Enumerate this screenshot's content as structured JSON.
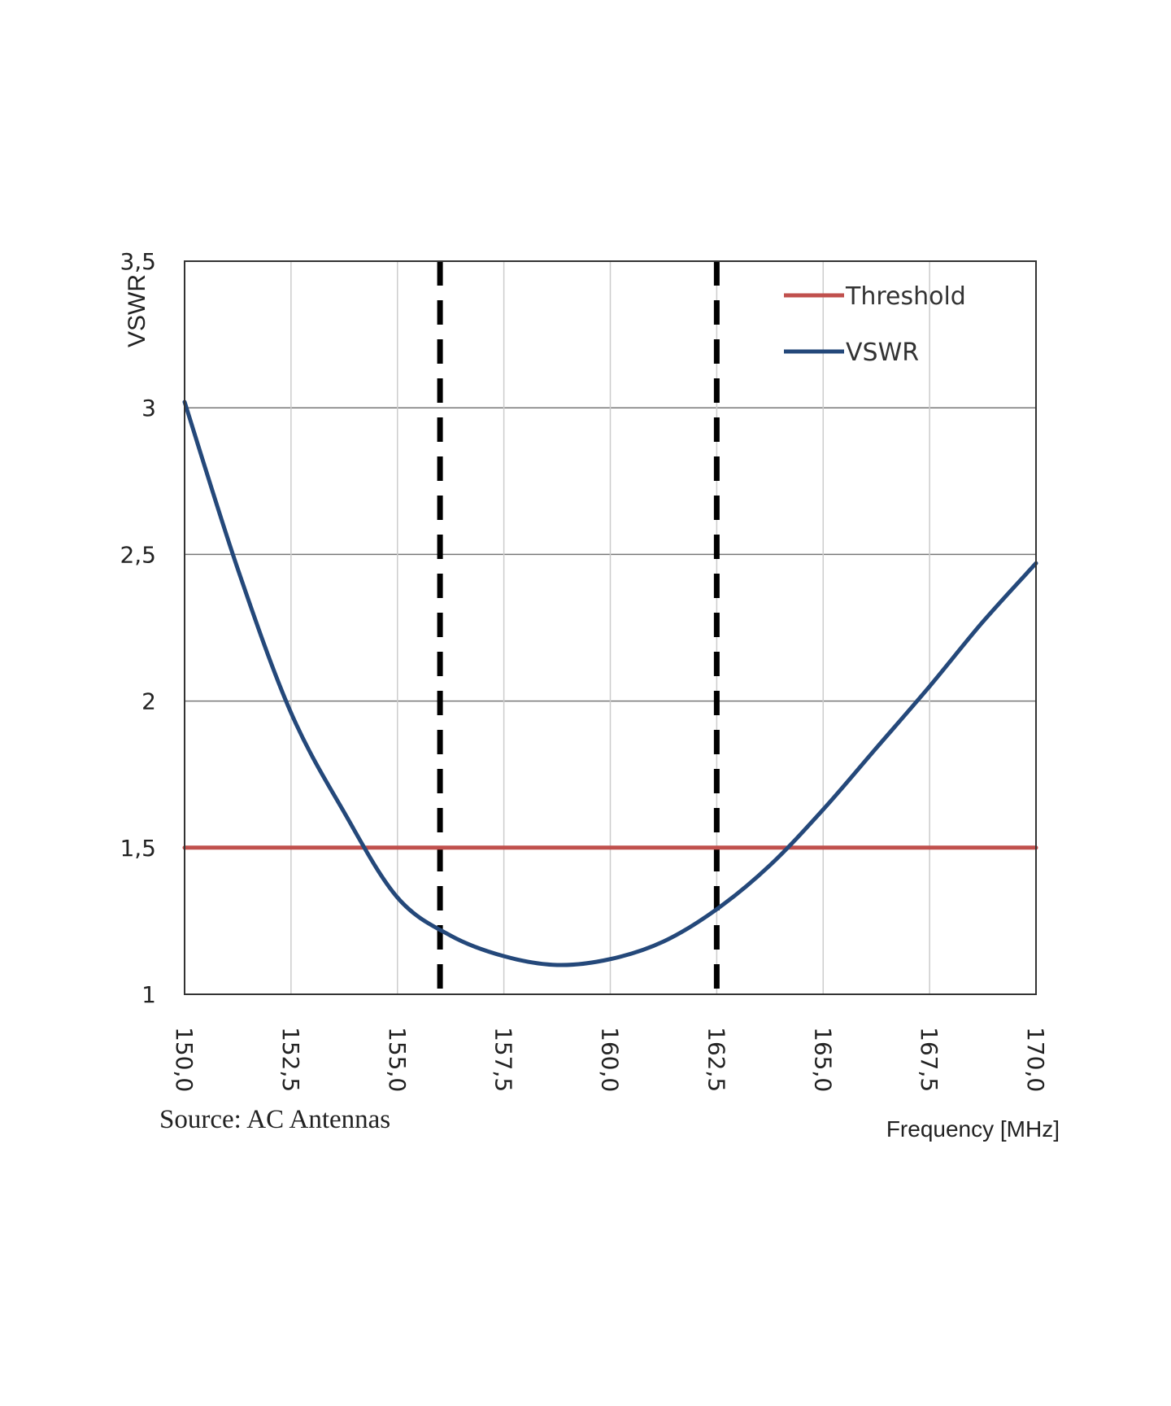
{
  "chart_data": {
    "type": "line",
    "title": "",
    "xlabel": "Frequency [MHz]",
    "ylabel": "VSWR",
    "xlim": [
      150,
      170
    ],
    "ylim": [
      1,
      3.5
    ],
    "x_ticks": [
      "150,0",
      "152,5",
      "155,0",
      "157,5",
      "160,0",
      "162,5",
      "165,0",
      "167,5",
      "170,0"
    ],
    "y_ticks": [
      "1",
      "1,5",
      "2",
      "2,5",
      "3",
      "3,5"
    ],
    "grid": true,
    "legend_position": "top-right",
    "series": [
      {
        "name": "Threshold",
        "color": "#c0504d",
        "x": [
          150,
          170
        ],
        "y": [
          1.5,
          1.5
        ]
      },
      {
        "name": "VSWR",
        "color": "#24487a",
        "x": [
          150,
          151.25,
          152.5,
          153.75,
          155,
          156.25,
          157.5,
          158.75,
          160,
          161.25,
          162.5,
          163.75,
          165,
          166.25,
          167.5,
          168.75,
          170
        ],
        "y": [
          3.02,
          2.45,
          1.96,
          1.62,
          1.33,
          1.2,
          1.13,
          1.1,
          1.12,
          1.18,
          1.29,
          1.44,
          1.63,
          1.84,
          2.05,
          2.27,
          2.47
        ]
      }
    ],
    "vertical_markers": [
      156.0,
      162.5
    ],
    "marker_style": "black dashed"
  },
  "source": "Source: AC Antennas"
}
